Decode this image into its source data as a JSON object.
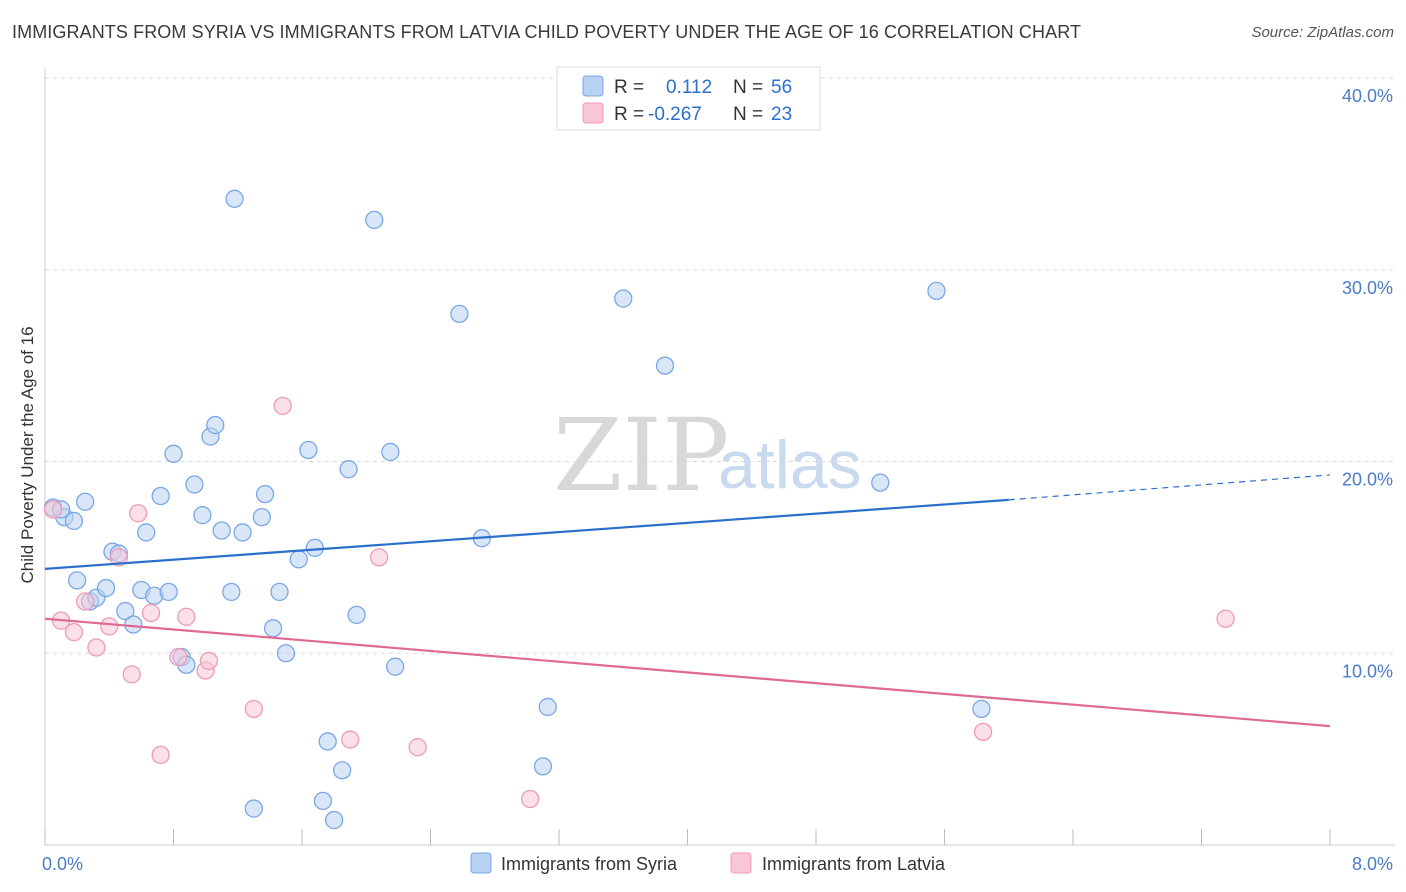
{
  "title": "IMMIGRANTS FROM SYRIA VS IMMIGRANTS FROM LATVIA CHILD POVERTY UNDER THE AGE OF 16 CORRELATION CHART",
  "source": "Source: ZipAtlas.com",
  "watermark": {
    "zip": "ZIP",
    "atlas": "atlas"
  },
  "chart_data": {
    "type": "scatter",
    "xlabel": "",
    "ylabel": "Child Poverty Under the Age of 16",
    "xlim": [
      0,
      8
    ],
    "ylim": [
      0,
      40
    ],
    "x_tick_labels": [
      {
        "value": 0,
        "label": "0.0%"
      },
      {
        "value": 8,
        "label": "8.0%"
      }
    ],
    "y_tick_labels": [
      {
        "value": 10,
        "label": "10.0%"
      },
      {
        "value": 20,
        "label": "20.0%"
      },
      {
        "value": 30,
        "label": "30.0%"
      },
      {
        "value": 40,
        "label": "40.0%"
      }
    ],
    "legend": [
      {
        "r_label": "R =",
        "r_value": "0.112",
        "n_label": "N =",
        "n_value": "56"
      },
      {
        "r_label": "R =",
        "r_value": "-0.267",
        "n_label": "N =",
        "n_value": "23"
      }
    ],
    "series": [
      {
        "name": "Immigrants from Syria",
        "color": "#7aa7e6",
        "fill": "#b9d1f3",
        "line_color": "#2a6fcc",
        "trend": {
          "x0": 0,
          "y0": 14.4,
          "x1": 6.0,
          "y1": 18.0,
          "x_dash_end": 8.0,
          "y_dash_end": 19.3
        },
        "points": [
          [
            0.05,
            17.6
          ],
          [
            0.12,
            17.1
          ],
          [
            0.18,
            16.9
          ],
          [
            0.25,
            17.9
          ],
          [
            0.2,
            13.8
          ],
          [
            0.28,
            12.7
          ],
          [
            0.32,
            12.9
          ],
          [
            0.38,
            13.4
          ],
          [
            0.42,
            15.3
          ],
          [
            0.46,
            15.2
          ],
          [
            0.5,
            12.2
          ],
          [
            0.55,
            11.5
          ],
          [
            0.6,
            13.3
          ],
          [
            0.63,
            16.3
          ],
          [
            0.68,
            13.0
          ],
          [
            0.72,
            18.2
          ],
          [
            0.77,
            13.2
          ],
          [
            0.8,
            20.4
          ],
          [
            0.85,
            9.8
          ],
          [
            0.88,
            9.4
          ],
          [
            0.93,
            18.8
          ],
          [
            0.98,
            17.2
          ],
          [
            1.03,
            21.3
          ],
          [
            1.06,
            21.9
          ],
          [
            1.1,
            16.4
          ],
          [
            1.16,
            13.2
          ],
          [
            1.18,
            33.7
          ],
          [
            1.23,
            16.3
          ],
          [
            1.3,
            1.9
          ],
          [
            1.35,
            17.1
          ],
          [
            1.37,
            18.3
          ],
          [
            1.42,
            11.3
          ],
          [
            1.46,
            13.2
          ],
          [
            1.5,
            10.0
          ],
          [
            1.58,
            14.9
          ],
          [
            1.64,
            20.6
          ],
          [
            1.68,
            15.5
          ],
          [
            1.73,
            2.3
          ],
          [
            1.76,
            5.4
          ],
          [
            1.8,
            1.3
          ],
          [
            1.85,
            3.9
          ],
          [
            1.89,
            19.6
          ],
          [
            1.94,
            12.0
          ],
          [
            2.05,
            32.6
          ],
          [
            2.15,
            20.5
          ],
          [
            2.18,
            9.3
          ],
          [
            2.58,
            27.7
          ],
          [
            2.72,
            16.0
          ],
          [
            3.1,
            4.1
          ],
          [
            3.13,
            7.2
          ],
          [
            3.6,
            28.5
          ],
          [
            3.86,
            25.0
          ],
          [
            5.2,
            18.9
          ],
          [
            5.55,
            28.9
          ],
          [
            5.83,
            7.1
          ],
          [
            0.1,
            17.5
          ]
        ]
      },
      {
        "name": "Immigrants from Latvia",
        "color": "#ee9bb8",
        "fill": "#f8c6d7",
        "line_color": "#e06a97",
        "trend": {
          "x0": 0,
          "y0": 11.8,
          "x1": 8.0,
          "y1": 6.2
        },
        "points": [
          [
            0.05,
            17.5
          ],
          [
            0.1,
            11.7
          ],
          [
            0.18,
            11.1
          ],
          [
            0.25,
            12.7
          ],
          [
            0.32,
            10.3
          ],
          [
            0.4,
            11.4
          ],
          [
            0.46,
            15.0
          ],
          [
            0.54,
            8.9
          ],
          [
            0.58,
            17.3
          ],
          [
            0.66,
            12.1
          ],
          [
            0.72,
            4.7
          ],
          [
            0.83,
            9.8
          ],
          [
            0.88,
            11.9
          ],
          [
            1.0,
            9.1
          ],
          [
            1.02,
            9.6
          ],
          [
            1.3,
            7.1
          ],
          [
            1.48,
            22.9
          ],
          [
            1.9,
            5.5
          ],
          [
            2.08,
            15.0
          ],
          [
            2.32,
            5.1
          ],
          [
            3.02,
            2.4
          ],
          [
            5.84,
            5.9
          ],
          [
            7.35,
            11.8
          ]
        ]
      }
    ]
  }
}
